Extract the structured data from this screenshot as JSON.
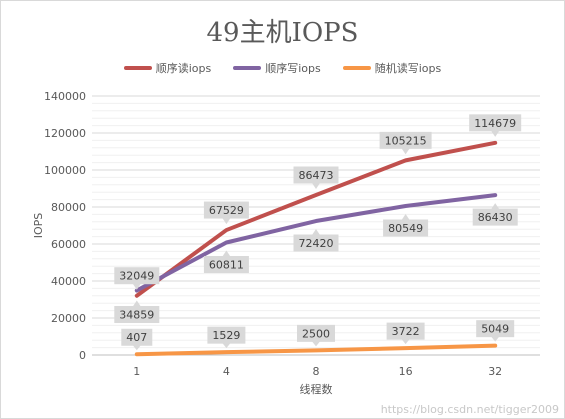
{
  "chart_data": {
    "type": "line",
    "title": "49主机IOPS",
    "xlabel": "线程数",
    "ylabel": "IOPS",
    "categories": [
      "1",
      "4",
      "8",
      "16",
      "32"
    ],
    "ylim": [
      0,
      140000
    ],
    "yticks": [
      0,
      20000,
      40000,
      60000,
      80000,
      100000,
      120000,
      140000
    ],
    "grid": true,
    "legend_position": "top",
    "series": [
      {
        "name": "顺序读iops",
        "color": "#c0504d",
        "values": [
          32049,
          67529,
          86473,
          105215,
          114679
        ]
      },
      {
        "name": "顺序写iops",
        "color": "#8064a2",
        "values": [
          34859,
          60811,
          72420,
          80549,
          86430
        ]
      },
      {
        "name": "随机读写iops",
        "color": "#f79646",
        "values": [
          407,
          1529,
          2500,
          3722,
          5049
        ]
      }
    ]
  },
  "watermark": "https://blog.csdn.net/tigger2009"
}
